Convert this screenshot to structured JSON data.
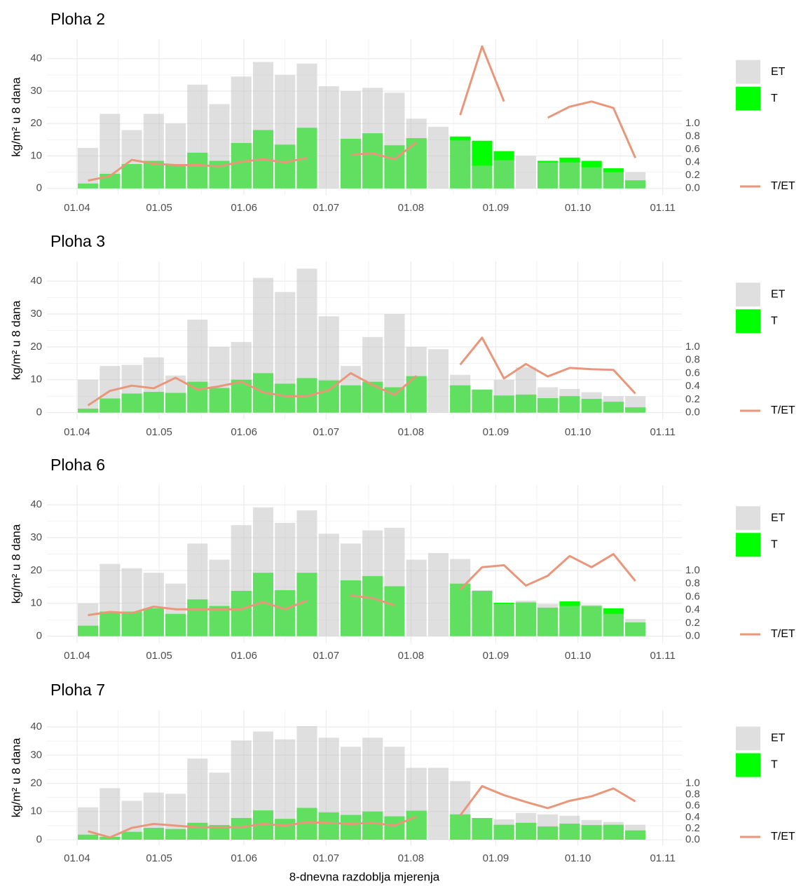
{
  "chart_data": [
    {
      "type": "bar",
      "title": "Ploha 2",
      "y_label": "kg/m² u 8 dana",
      "x": [
        "05.04",
        "13.04",
        "21.04",
        "29.04",
        "07.05",
        "15.05",
        "23.05",
        "31.05",
        "08.06",
        "16.06",
        "24.06",
        "02.07",
        "10.07",
        "18.07",
        "26.07",
        "03.08",
        "11.08",
        "19.08",
        "27.08",
        "04.09",
        "12.09",
        "20.09",
        "28.09",
        "06.10",
        "14.10",
        "22.10"
      ],
      "xlim": [
        "21.03",
        "08.11"
      ],
      "xticks": [
        "01.04",
        "01.05",
        "01.06",
        "01.07",
        "01.08",
        "01.09",
        "01.10",
        "01.11"
      ],
      "ylim": [
        -2,
        46
      ],
      "yticks": [
        0,
        10,
        20,
        30,
        40
      ],
      "y2lim": [
        -0.1,
        2.3
      ],
      "y2ticks": [
        {
          "value": 0,
          "label": "0.0"
        },
        0.2,
        0.4,
        0.6,
        0.8,
        {
          "value": 1,
          "label": "1.0"
        }
      ],
      "grid": true,
      "series": [
        {
          "name": "ET",
          "color": "#c0c0c0",
          "opacity": 0.5,
          "values": [
            12.5,
            23,
            18,
            23,
            20,
            32,
            26,
            34.5,
            39,
            35,
            38.5,
            31.5,
            30,
            31,
            29.5,
            21.5,
            19,
            14.8,
            7,
            8.7,
            10,
            8,
            8,
            6.5,
            5,
            5
          ]
        },
        {
          "name": "T",
          "color": "#00ff00",
          "values": [
            1.5,
            4.5,
            7.5,
            8.5,
            7.5,
            11,
            8.5,
            14,
            18,
            13.5,
            18.7,
            null,
            15.3,
            17,
            13.3,
            15.5,
            null,
            16,
            14.7,
            11.5,
            null,
            8.5,
            9.5,
            8.5,
            6.2,
            2.5
          ]
        },
        {
          "name": "T/ET",
          "color": "#e9967a",
          "type": "line",
          "axis": "y2",
          "values": [
            0.12,
            0.19,
            0.44,
            0.38,
            0.36,
            0.36,
            0.34,
            0.41,
            0.45,
            0.4,
            0.47,
            null,
            0.52,
            0.54,
            0.45,
            0.71,
            null,
            1.13,
            2.19,
            1.34,
            null,
            1.09,
            1.26,
            1.34,
            1.24,
            0.47
          ]
        }
      ]
    },
    {
      "type": "bar",
      "title": "Ploha 3",
      "y_label": "kg/m² u 8 dana",
      "x": [
        "05.04",
        "13.04",
        "21.04",
        "29.04",
        "07.05",
        "15.05",
        "23.05",
        "31.05",
        "08.06",
        "16.06",
        "24.06",
        "02.07",
        "10.07",
        "18.07",
        "26.07",
        "03.08",
        "11.08",
        "19.08",
        "27.08",
        "04.09",
        "12.09",
        "20.09",
        "28.09",
        "06.10",
        "14.10",
        "22.10"
      ],
      "xlim": [
        "21.03",
        "08.11"
      ],
      "xticks": [
        "01.04",
        "01.05",
        "01.06",
        "01.07",
        "01.08",
        "01.09",
        "01.10",
        "01.11"
      ],
      "ylim": [
        -2,
        46
      ],
      "yticks": [
        0,
        10,
        20,
        30,
        40
      ],
      "y2lim": [
        -0.1,
        2.3
      ],
      "y2ticks": [
        {
          "value": 0,
          "label": "0.0"
        },
        0.2,
        0.4,
        0.6,
        0.8,
        {
          "value": 1,
          "label": "1.0"
        }
      ],
      "grid": true,
      "series": [
        {
          "name": "ET",
          "color": "#c0c0c0",
          "opacity": 0.5,
          "values": [
            10,
            14.2,
            14.5,
            16.8,
            11.3,
            28.3,
            20,
            21.5,
            41,
            36.7,
            43.8,
            29.3,
            14.2,
            23,
            30,
            20,
            19.3,
            11.5,
            7,
            10,
            13.8,
            7.7,
            7.2,
            6.2,
            5,
            5
          ]
        },
        {
          "name": "T",
          "color": "#00ff00",
          "values": [
            1.2,
            4.3,
            5.8,
            6.3,
            6,
            9.4,
            7.5,
            10,
            12,
            8.8,
            10.5,
            9.8,
            8.3,
            9.4,
            7.7,
            11.1,
            null,
            8.3,
            7,
            5.2,
            5.5,
            4.4,
            5,
            4.2,
            3.3,
            1.6
          ]
        },
        {
          "name": "T/ET",
          "color": "#e9967a",
          "type": "line",
          "axis": "y2",
          "values": [
            0.11,
            0.33,
            0.41,
            0.37,
            0.53,
            0.35,
            0.4,
            0.47,
            0.31,
            0.25,
            0.25,
            0.34,
            0.6,
            0.42,
            0.27,
            0.56,
            null,
            0.73,
            1.14,
            0.52,
            0.74,
            0.55,
            0.68,
            0.66,
            0.65,
            0.29
          ]
        }
      ]
    },
    {
      "type": "bar",
      "title": "Ploha 6",
      "y_label": "kg/m² u 8 dana",
      "x": [
        "05.04",
        "13.04",
        "21.04",
        "29.04",
        "07.05",
        "15.05",
        "23.05",
        "31.05",
        "08.06",
        "16.06",
        "24.06",
        "02.07",
        "10.07",
        "18.07",
        "26.07",
        "03.08",
        "11.08",
        "19.08",
        "27.08",
        "04.09",
        "12.09",
        "20.09",
        "28.09",
        "06.10",
        "14.10",
        "22.10"
      ],
      "xlim": [
        "21.03",
        "08.11"
      ],
      "xticks": [
        "01.04",
        "01.05",
        "01.06",
        "01.07",
        "01.08",
        "01.09",
        "01.10",
        "01.11"
      ],
      "ylim": [
        -2,
        46
      ],
      "yticks": [
        0,
        10,
        20,
        30,
        40
      ],
      "y2lim": [
        -0.1,
        2.3
      ],
      "y2ticks": [
        {
          "value": 0,
          "label": "0.0"
        },
        0.2,
        0.4,
        0.6,
        0.8,
        {
          "value": 1,
          "label": "1.0"
        }
      ],
      "grid": true,
      "series": [
        {
          "name": "ET",
          "color": "#c0c0c0",
          "opacity": 0.5,
          "values": [
            10,
            22,
            20.7,
            19.3,
            16,
            28.2,
            23.3,
            33.8,
            39.2,
            34.5,
            38.3,
            31.2,
            28.2,
            32.2,
            33,
            23.3,
            25.3,
            23.5,
            14,
            9.8,
            10.8,
            9.8,
            9.2,
            9.6,
            6.8,
            5.2
          ]
        },
        {
          "name": "T",
          "color": "#00ff00",
          "values": [
            3.2,
            7.5,
            7.5,
            8.5,
            6.8,
            11.2,
            9.2,
            13.8,
            19.3,
            14,
            19.3,
            null,
            17,
            18.3,
            15.2,
            null,
            null,
            16,
            13.8,
            10.2,
            10.3,
            8.7,
            10.6,
            9.2,
            8.5,
            4.2
          ]
        },
        {
          "name": "T/ET",
          "color": "#e9967a",
          "type": "line",
          "axis": "y2",
          "values": [
            0.32,
            0.37,
            0.35,
            0.45,
            0.41,
            0.41,
            0.41,
            0.41,
            0.52,
            0.41,
            0.54,
            null,
            0.62,
            0.58,
            0.47,
            null,
            null,
            0.71,
            1.05,
            1.08,
            0.77,
            0.92,
            1.22,
            1.05,
            1.25,
            0.84
          ]
        }
      ]
    },
    {
      "type": "bar",
      "title": "Ploha 7",
      "y_label": "kg/m² u 8 dana",
      "x_label": "8-dnevna razdoblja mjerenja",
      "x": [
        "05.04",
        "13.04",
        "21.04",
        "29.04",
        "07.05",
        "15.05",
        "23.05",
        "31.05",
        "08.06",
        "16.06",
        "24.06",
        "02.07",
        "10.07",
        "18.07",
        "26.07",
        "03.08",
        "11.08",
        "19.08",
        "27.08",
        "04.09",
        "12.09",
        "20.09",
        "28.09",
        "06.10",
        "14.10",
        "22.10"
      ],
      "xlim": [
        "21.03",
        "08.11"
      ],
      "xticks": [
        "01.04",
        "01.05",
        "01.06",
        "01.07",
        "01.08",
        "01.09",
        "01.10",
        "01.11"
      ],
      "ylim": [
        -2,
        46
      ],
      "yticks": [
        0,
        10,
        20,
        30,
        40
      ],
      "y2lim": [
        -0.1,
        2.3
      ],
      "y2ticks": [
        {
          "value": 0,
          "label": "0.0"
        },
        0.2,
        0.4,
        0.6,
        0.8,
        {
          "value": 1,
          "label": "1.0"
        }
      ],
      "grid": true,
      "series": [
        {
          "name": "ET",
          "color": "#c0c0c0",
          "opacity": 0.5,
          "values": [
            11.5,
            18.3,
            13.8,
            16.7,
            16.3,
            28.8,
            23.8,
            35.2,
            38.4,
            35.6,
            40.3,
            36.2,
            33,
            36.2,
            33,
            25.5,
            25.5,
            20.8,
            7.7,
            7.2,
            9.5,
            9,
            8.5,
            7,
            6.3,
            5.3
          ]
        },
        {
          "name": "T",
          "color": "#00ff00",
          "values": [
            1.8,
            1,
            2.8,
            4.2,
            3.8,
            6,
            5.2,
            7.7,
            10.4,
            7.4,
            11.3,
            9.7,
            8.8,
            10,
            8.3,
            10.3,
            null,
            9,
            7.7,
            5.3,
            6,
            4.7,
            5.7,
            5.2,
            5.3,
            3.3
          ]
        },
        {
          "name": "T/ET",
          "color": "#e9967a",
          "type": "line",
          "axis": "y2",
          "values": [
            0.15,
            0.04,
            0.21,
            0.28,
            0.25,
            0.22,
            0.22,
            0.22,
            0.28,
            0.25,
            0.31,
            0.3,
            0.28,
            0.3,
            0.25,
            0.41,
            null,
            0.43,
            0.95,
            0.79,
            0.67,
            0.56,
            0.69,
            0.77,
            0.91,
            0.68
          ]
        }
      ]
    }
  ]
}
